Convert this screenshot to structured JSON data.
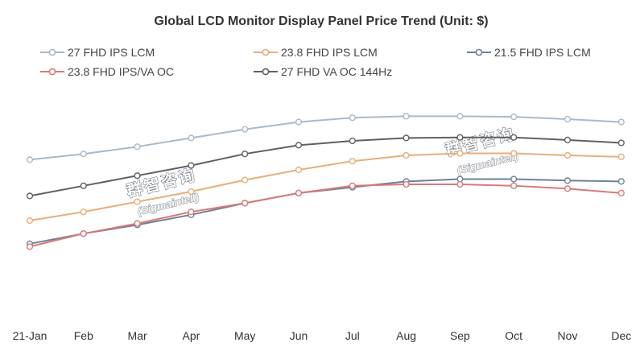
{
  "chart_data": {
    "type": "line",
    "title": "Global LCD Monitor Display Panel Price Trend (Unit: $)",
    "xlabel": "",
    "ylabel": "",
    "ylim": [
      40,
      110
    ],
    "grid": false,
    "legend_position": "top",
    "categories": [
      "21-Jan",
      "Feb",
      "Mar",
      "Apr",
      "May",
      "Jun",
      "Jul",
      "Aug",
      "Sep",
      "Oct",
      "Nov",
      "Dec"
    ],
    "series": [
      {
        "name": "27 FHD IPS LCM",
        "color": "#aab9c8",
        "values": [
          91,
          93,
          95.5,
          98.5,
          101.5,
          104,
          105.5,
          106,
          106,
          105.8,
          105,
          104
        ]
      },
      {
        "name": "23.8 FHD IPS LCM",
        "color": "#e8ad7c",
        "values": [
          70,
          73,
          76.5,
          80,
          84,
          87.5,
          90.5,
          92.5,
          93.2,
          93.2,
          92.5,
          92
        ]
      },
      {
        "name": "21.5 FHD IPS LCM",
        "color": "#6f8196",
        "values": [
          62,
          65.5,
          68.5,
          72,
          76,
          79.5,
          81.5,
          83.5,
          84.3,
          84.3,
          83.8,
          83.5
        ]
      },
      {
        "name": "23.8 FHD IPS/VA OC",
        "color": "#d87a7a",
        "values": [
          61,
          65.5,
          69,
          73,
          76,
          79.5,
          82,
          82.5,
          82.5,
          82,
          81,
          79.5
        ]
      },
      {
        "name": "27 FHD VA OC 144Hz",
        "color": "#606060",
        "values": [
          78.5,
          82,
          85.5,
          89,
          93,
          96,
          97.5,
          98.5,
          98.7,
          98.7,
          97.8,
          96.8
        ]
      }
    ],
    "annotations": [
      "群智咨询",
      "(Sigmaintell)",
      "群智咨询",
      "(Sigmaintell)"
    ]
  }
}
